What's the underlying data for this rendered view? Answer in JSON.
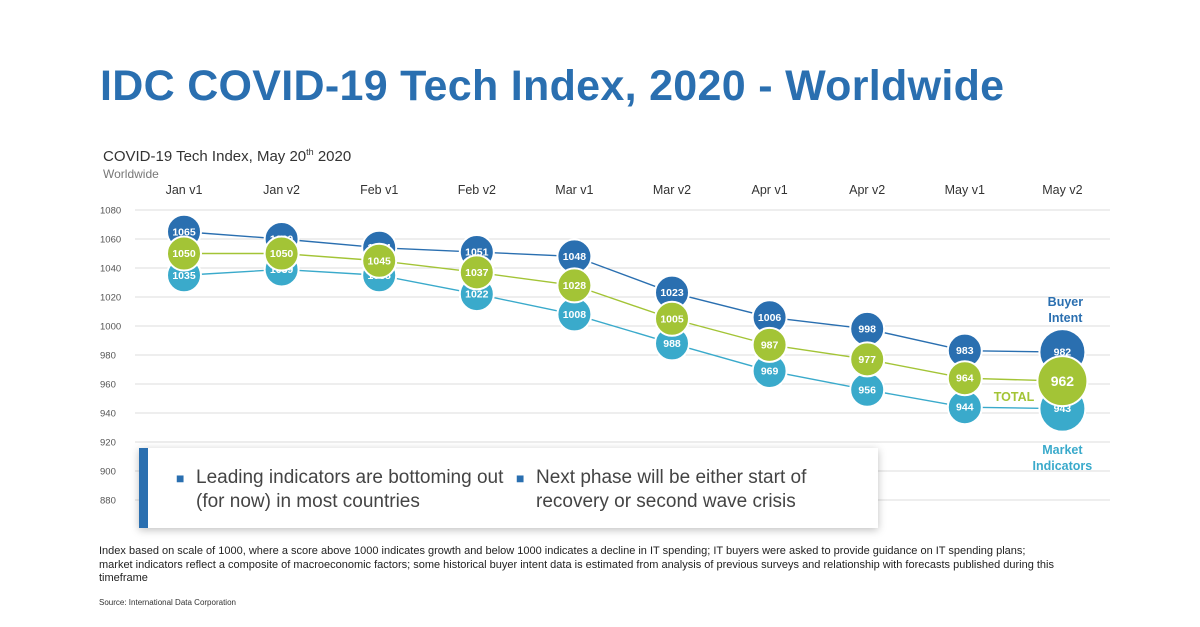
{
  "page": {
    "title": "IDC COVID-19 Tech Index, 2020 - Worldwide",
    "footnote": "Index based on scale of 1000, where a score above 1000 indicates growth and below 1000 indicates a decline in IT spending; IT buyers were asked to provide guidance on IT spending plans; market indicators reflect a composite of macroeconomic factors; some historical buyer intent data is estimated from analysis of previous surveys and relationship with forecasts published during this timeframe",
    "source": "Source: International Data Corporation"
  },
  "callout": {
    "bullet_1": "Leading indicators are bottoming out (for now) in most countries",
    "bullet_2": "Next phase will be either start of recovery or second wave crisis"
  },
  "chart_data": {
    "type": "line",
    "title_main": "COVID-19 Tech Index, May 20",
    "title_sup": "th",
    "title_end": " 2020",
    "subtitle": "Worldwide",
    "categories": [
      "Jan v1",
      "Jan v2",
      "Feb v1",
      "Feb v2",
      "Mar v1",
      "Mar v2",
      "Apr v1",
      "Apr v2",
      "May v1",
      "May v2"
    ],
    "ylim": [
      880,
      1080
    ],
    "yticks": [
      880,
      900,
      920,
      940,
      960,
      980,
      1000,
      1020,
      1040,
      1060,
      1080
    ],
    "grid": true,
    "series": [
      {
        "name": "Buyer Intent",
        "label_lines": [
          "Buyer",
          "Intent"
        ],
        "color": "#2a6fb0",
        "values": [
          1065,
          1060,
          1054,
          1051,
          1048,
          1023,
          1006,
          998,
          983,
          982
        ],
        "labels": [
          "1065",
          "1060",
          "1054",
          "1051",
          "1048",
          "1023",
          "1006",
          "998",
          "983",
          "982"
        ]
      },
      {
        "name": "TOTAL",
        "label_lines": [
          "TOTAL"
        ],
        "color": "#a3c436",
        "values": [
          1050,
          1050,
          1045,
          1037,
          1028,
          1005,
          987,
          977,
          964,
          962
        ],
        "labels": [
          "1050",
          "1050",
          "1045",
          "1037",
          "1028",
          "1005",
          "987",
          "977",
          "964",
          "962"
        ]
      },
      {
        "name": "Market Indicators",
        "label_lines": [
          "Market",
          "Indicators"
        ],
        "color": "#3aaacb",
        "values": [
          1035,
          1039,
          1035,
          1022,
          1008,
          988,
          969,
          956,
          944,
          943
        ],
        "labels": [
          "1035",
          "1039",
          "1035",
          "1022",
          "1008",
          "988",
          "969",
          "956",
          "944",
          "943"
        ]
      }
    ]
  }
}
